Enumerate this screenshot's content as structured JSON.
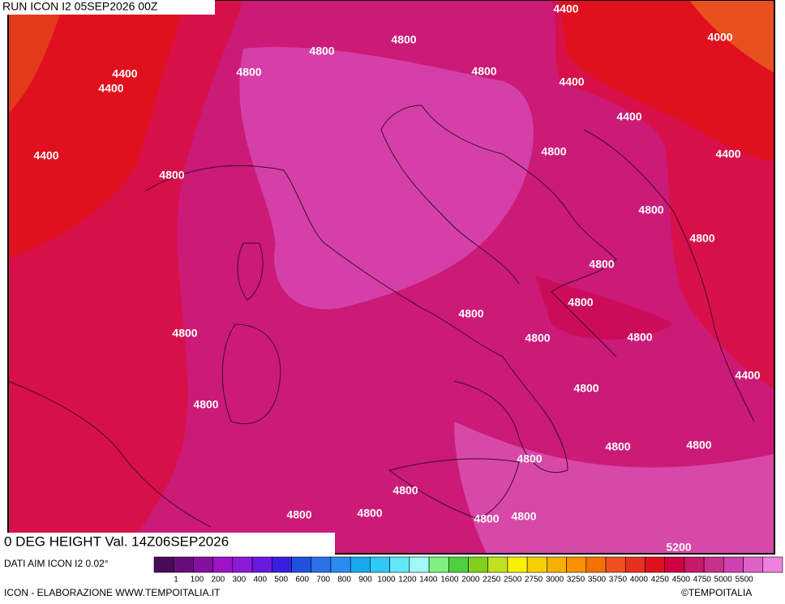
{
  "header": {
    "run": "RUN ICON I2 05SEP2026 00Z",
    "field": "0 DEG HEIGHT Val. 14Z06SEP2026"
  },
  "map": {
    "contour_labels": [
      "4400",
      "4800",
      "4800",
      "4000",
      "4400",
      "4400",
      "4800",
      "4800",
      "4400",
      "4400",
      "4400",
      "4800",
      "4400",
      "4800",
      "4800",
      "4800",
      "4800",
      "4800",
      "4800",
      "4800",
      "4800",
      "4800",
      "4400",
      "4800",
      "4800",
      "4800",
      "4800",
      "4800",
      "4800",
      "4800",
      "4800",
      "4800",
      "4800",
      "5200"
    ]
  },
  "legend": {
    "labels": [
      "1",
      "100",
      "200",
      "300",
      "400",
      "500",
      "600",
      "700",
      "800",
      "900",
      "1000",
      "1200",
      "1400",
      "1600",
      "2000",
      "2250",
      "2500",
      "2750",
      "3000",
      "3250",
      "3500",
      "3750",
      "4000",
      "4250",
      "4500",
      "4750",
      "5000",
      "5500"
    ],
    "colors": [
      "#4a0a5a",
      "#6a0d7a",
      "#8410a0",
      "#a012c8",
      "#8c1ad8",
      "#6a1ae0",
      "#3a1ee0",
      "#2050e0",
      "#2a70e8",
      "#2a8cf0",
      "#18a8f0",
      "#30c8f8",
      "#60e8f8",
      "#a0f8f8",
      "#80f080",
      "#50d040",
      "#80d020",
      "#c0e020",
      "#f8f000",
      "#f8d000",
      "#f8b000",
      "#f89000",
      "#f87000",
      "#f05020",
      "#e83020",
      "#e01020",
      "#d00040",
      "#c81868",
      "#c8308a",
      "#d040b0",
      "#e060c8",
      "#f080e0"
    ]
  },
  "footer": {
    "source": "DATI AIM ICON I2 0.02°",
    "credit": "ICON - ELABORAZIONE WWW.TEMPOITALIA.IT",
    "copyright": "©TEMPOITALIA"
  }
}
